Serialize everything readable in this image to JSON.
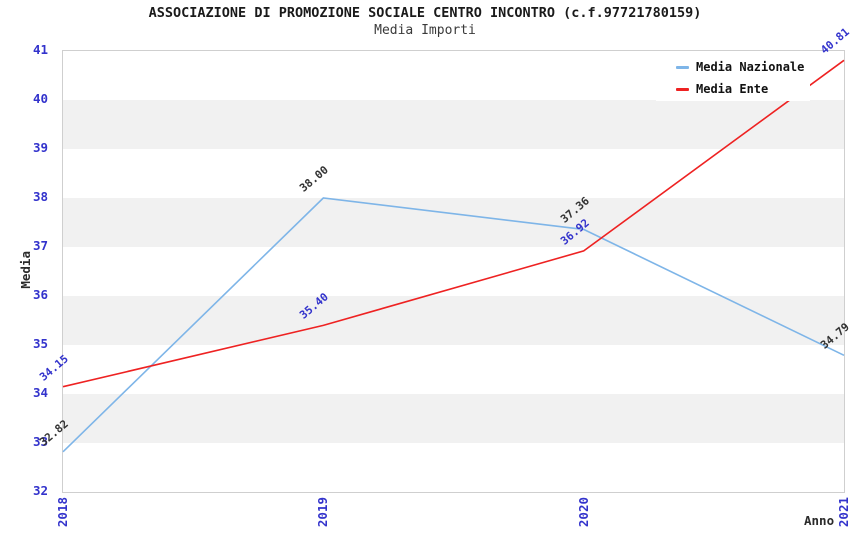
{
  "chart_data": {
    "type": "line",
    "title": "ASSOCIAZIONE DI PROMOZIONE SOCIALE CENTRO INCONTRO (c.f.97721780159)",
    "subtitle": "Media Importi",
    "xlabel": "Anno",
    "ylabel": "Media",
    "x": [
      "2018",
      "2019",
      "2020",
      "2021"
    ],
    "series": [
      {
        "name": "Media Nazionale",
        "color": "#7eb5e8",
        "label_color": "#333333",
        "values": [
          32.82,
          38.0,
          37.36,
          34.79
        ]
      },
      {
        "name": "Media Ente",
        "color": "#ee2222",
        "label_color": "#3333cc",
        "values": [
          34.15,
          35.4,
          36.92,
          40.81
        ]
      }
    ],
    "ylim": [
      32,
      41
    ],
    "ytick_step": 1,
    "tick_color": "#3333cc",
    "band_color": "#f1f1f1",
    "legend_position": "top-right",
    "grid": "alternating-horizontal-bands"
  }
}
